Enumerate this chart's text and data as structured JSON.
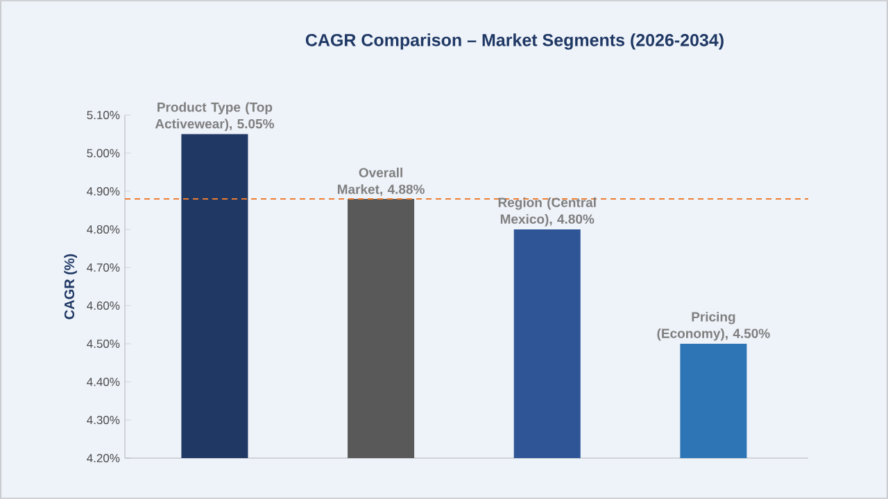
{
  "chart_data": {
    "type": "bar",
    "title": "CAGR Comparison – Market Segments (2026-2034)",
    "ylabel": "CAGR (%)",
    "categories": [
      null,
      null,
      null,
      null
    ],
    "values": [
      5.05,
      4.88,
      4.8,
      4.5
    ],
    "colors": [
      "#1f3864",
      "#595959",
      "#2f5597",
      "#2e75b6"
    ],
    "value_labels": [
      "Product Type (Top Activewear), 5.05%",
      "Overall Market, 4.88%",
      "Region (Central Mexico), 4.80%",
      "Pricing (Economy), 4.50%"
    ],
    "ylim": [
      4.2,
      5.1
    ],
    "yticks": [
      {
        "value": 4.2,
        "label": "4.20%"
      },
      {
        "value": 4.3,
        "label": "4.30%"
      },
      {
        "value": 4.4,
        "label": "4.40%"
      },
      {
        "value": 4.5,
        "label": "4.50%"
      },
      {
        "value": 4.6,
        "label": "4.60%"
      },
      {
        "value": 4.7,
        "label": "4.70%"
      },
      {
        "value": 4.8,
        "label": "4.80%"
      },
      {
        "value": 4.9,
        "label": "4.90%"
      },
      {
        "value": 5.0,
        "label": "5.00%"
      },
      {
        "value": 5.1,
        "label": "5.10%"
      }
    ],
    "ref_lines": [
      {
        "axis": "y",
        "value": 4.88,
        "color": "#ed7d31",
        "line_style": "dashed"
      }
    ]
  }
}
